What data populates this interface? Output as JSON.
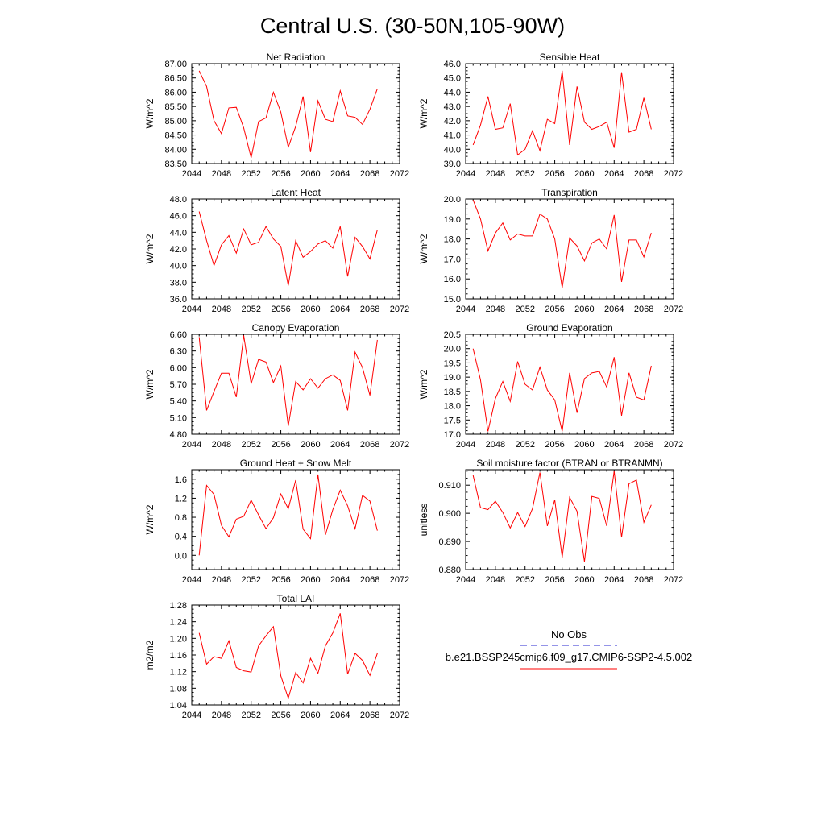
{
  "figure": {
    "title": "Central U.S. (30-50N,105-90W)",
    "legend": {
      "obs_label": "No Obs",
      "obs_color": "#2a2ad0",
      "case_label": "b.e21.BSSP245cmip6.f09_g17.CMIP6-SSP2-4.5.002",
      "case_color": "#ff0000"
    }
  },
  "chart_data": [
    {
      "type": "line",
      "title": "Net Radiation",
      "ylabel": "W/m^2",
      "xlim": [
        2044,
        2072
      ],
      "xticks": [
        2044,
        2048,
        2052,
        2056,
        2060,
        2064,
        2068,
        2072
      ],
      "ylim": [
        83.5,
        87.0
      ],
      "yticks": [
        "83.50",
        "84.00",
        "84.50",
        "85.00",
        "85.50",
        "86.00",
        "86.50",
        "87.00"
      ],
      "series": [
        {
          "color": "#ff0000",
          "x": [
            2045,
            2046,
            2047,
            2048,
            2049,
            2050,
            2051,
            2052,
            2053,
            2054,
            2055,
            2056,
            2057,
            2058,
            2059,
            2060,
            2061,
            2062,
            2063,
            2064,
            2065,
            2066,
            2067,
            2068,
            2069
          ],
          "values": [
            86.75,
            86.2,
            85.0,
            84.55,
            85.45,
            85.47,
            84.75,
            83.7,
            84.97,
            85.1,
            86.0,
            85.3,
            84.07,
            84.8,
            85.85,
            83.9,
            85.7,
            85.05,
            84.97,
            86.05,
            85.17,
            85.12,
            84.87,
            85.4,
            86.12
          ]
        }
      ]
    },
    {
      "type": "line",
      "title": "Sensible Heat",
      "ylabel": "W/m^2",
      "xlim": [
        2044,
        2072
      ],
      "xticks": [
        2044,
        2048,
        2052,
        2056,
        2060,
        2064,
        2068,
        2072
      ],
      "ylim": [
        39.0,
        46.0
      ],
      "yticks": [
        "39.0",
        "40.0",
        "41.0",
        "42.0",
        "43.0",
        "44.0",
        "45.0",
        "46.0"
      ],
      "series": [
        {
          "color": "#ff0000",
          "x": [
            2045,
            2046,
            2047,
            2048,
            2049,
            2050,
            2051,
            2052,
            2053,
            2054,
            2055,
            2056,
            2057,
            2058,
            2059,
            2060,
            2061,
            2062,
            2063,
            2064,
            2065,
            2066,
            2067,
            2068,
            2069
          ],
          "values": [
            40.3,
            41.7,
            43.7,
            41.4,
            41.5,
            43.2,
            39.6,
            40.0,
            41.3,
            39.9,
            42.1,
            41.8,
            45.5,
            40.3,
            44.4,
            41.9,
            41.4,
            41.6,
            41.9,
            40.1,
            45.4,
            41.2,
            41.4,
            43.6,
            41.4
          ]
        }
      ]
    },
    {
      "type": "line",
      "title": "Latent Heat",
      "ylabel": "W/m^2",
      "xlim": [
        2044,
        2072
      ],
      "xticks": [
        2044,
        2048,
        2052,
        2056,
        2060,
        2064,
        2068,
        2072
      ],
      "ylim": [
        36.0,
        48.0
      ],
      "yticks": [
        "36.0",
        "38.0",
        "40.0",
        "42.0",
        "44.0",
        "46.0",
        "48.0"
      ],
      "series": [
        {
          "color": "#ff0000",
          "x": [
            2045,
            2046,
            2047,
            2048,
            2049,
            2050,
            2051,
            2052,
            2053,
            2054,
            2055,
            2056,
            2057,
            2058,
            2059,
            2060,
            2061,
            2062,
            2063,
            2064,
            2065,
            2066,
            2067,
            2068,
            2069
          ],
          "values": [
            46.5,
            43.0,
            40.0,
            42.5,
            43.6,
            41.5,
            44.4,
            42.5,
            42.8,
            44.7,
            43.2,
            42.3,
            37.6,
            43.0,
            41.0,
            41.7,
            42.6,
            43.0,
            42.1,
            44.7,
            38.7,
            43.4,
            42.3,
            40.8,
            44.3
          ]
        }
      ]
    },
    {
      "type": "line",
      "title": "Transpiration",
      "ylabel": "W/m^2",
      "xlim": [
        2044,
        2072
      ],
      "xticks": [
        2044,
        2048,
        2052,
        2056,
        2060,
        2064,
        2068,
        2072
      ],
      "ylim": [
        15.0,
        20.0
      ],
      "yticks": [
        "15.0",
        "16.0",
        "17.0",
        "18.0",
        "19.0",
        "20.0"
      ],
      "series": [
        {
          "color": "#ff0000",
          "x": [
            2045,
            2046,
            2047,
            2048,
            2049,
            2050,
            2051,
            2052,
            2053,
            2054,
            2055,
            2056,
            2057,
            2058,
            2059,
            2060,
            2061,
            2062,
            2063,
            2064,
            2065,
            2066,
            2067,
            2068,
            2069
          ],
          "values": [
            19.95,
            19.0,
            17.4,
            18.3,
            18.8,
            17.95,
            18.25,
            18.15,
            18.15,
            19.25,
            19.0,
            18.0,
            15.55,
            18.05,
            17.65,
            16.9,
            17.8,
            18.0,
            17.5,
            19.2,
            15.85,
            17.95,
            17.95,
            17.1,
            18.3
          ]
        }
      ]
    },
    {
      "type": "line",
      "title": "Canopy Evaporation",
      "ylabel": "W/m^2",
      "xlim": [
        2044,
        2072
      ],
      "xticks": [
        2044,
        2048,
        2052,
        2056,
        2060,
        2064,
        2068,
        2072
      ],
      "ylim": [
        4.8,
        6.6
      ],
      "yticks": [
        "4.80",
        "5.10",
        "5.40",
        "5.70",
        "6.00",
        "6.30",
        "6.60"
      ],
      "series": [
        {
          "color": "#ff0000",
          "x": [
            2045,
            2046,
            2047,
            2048,
            2049,
            2050,
            2051,
            2052,
            2053,
            2054,
            2055,
            2056,
            2057,
            2058,
            2059,
            2060,
            2061,
            2062,
            2063,
            2064,
            2065,
            2066,
            2067,
            2068,
            2069
          ],
          "values": [
            6.55,
            5.23,
            5.57,
            5.9,
            5.9,
            5.47,
            6.58,
            5.71,
            6.15,
            6.1,
            5.73,
            6.03,
            4.95,
            5.75,
            5.6,
            5.8,
            5.63,
            5.8,
            5.87,
            5.77,
            5.23,
            6.28,
            6.0,
            5.5,
            6.5
          ]
        }
      ]
    },
    {
      "type": "line",
      "title": "Ground Evaporation",
      "ylabel": "W/m^2",
      "xlim": [
        2044,
        2072
      ],
      "xticks": [
        2044,
        2048,
        2052,
        2056,
        2060,
        2064,
        2068,
        2072
      ],
      "ylim": [
        17.0,
        20.5
      ],
      "yticks": [
        "17.0",
        "17.5",
        "18.0",
        "18.5",
        "19.0",
        "19.5",
        "20.0",
        "20.5"
      ],
      "series": [
        {
          "color": "#ff0000",
          "x": [
            2045,
            2046,
            2047,
            2048,
            2049,
            2050,
            2051,
            2052,
            2053,
            2054,
            2055,
            2056,
            2057,
            2058,
            2059,
            2060,
            2061,
            2062,
            2063,
            2064,
            2065,
            2066,
            2067,
            2068,
            2069
          ],
          "values": [
            20.0,
            18.9,
            17.1,
            18.25,
            18.85,
            18.15,
            19.55,
            18.75,
            18.55,
            19.35,
            18.55,
            18.2,
            17.1,
            19.15,
            17.75,
            18.95,
            19.15,
            19.2,
            18.65,
            19.7,
            17.65,
            19.15,
            18.3,
            18.2,
            19.4
          ]
        }
      ]
    },
    {
      "type": "line",
      "title": "Ground Heat + Snow Melt",
      "ylabel": "W/m^2",
      "xlim": [
        2044,
        2072
      ],
      "xticks": [
        2044,
        2048,
        2052,
        2056,
        2060,
        2064,
        2068,
        2072
      ],
      "ylim": [
        -0.3,
        1.8
      ],
      "yticks": [
        "0.0",
        "0.4",
        "0.8",
        "1.2",
        "1.6"
      ],
      "ytick_values": [
        0.0,
        0.4,
        0.8,
        1.2,
        1.6
      ],
      "series": [
        {
          "color": "#ff0000",
          "x": [
            2045,
            2046,
            2047,
            2048,
            2049,
            2050,
            2051,
            2052,
            2053,
            2054,
            2055,
            2056,
            2057,
            2058,
            2059,
            2060,
            2061,
            2062,
            2063,
            2064,
            2065,
            2066,
            2067,
            2068,
            2069
          ],
          "values": [
            0.0,
            1.47,
            1.28,
            0.63,
            0.39,
            0.76,
            0.82,
            1.16,
            0.85,
            0.56,
            0.79,
            1.29,
            0.98,
            1.58,
            0.55,
            0.35,
            1.7,
            0.43,
            0.96,
            1.37,
            1.04,
            0.56,
            1.26,
            1.14,
            0.52
          ]
        }
      ]
    },
    {
      "type": "line",
      "title": "Soil moisture factor (BTRAN or BTRANMN)",
      "ylabel": "unitless",
      "xlim": [
        2044,
        2072
      ],
      "xticks": [
        2044,
        2048,
        2052,
        2056,
        2060,
        2064,
        2068,
        2072
      ],
      "ylim": [
        0.88,
        0.9155
      ],
      "yticks": [
        "0.880",
        "0.890",
        "0.900",
        "0.910"
      ],
      "ytick_values": [
        0.88,
        0.89,
        0.9,
        0.91
      ],
      "series": [
        {
          "color": "#ff0000",
          "x": [
            2045,
            2046,
            2047,
            2048,
            2049,
            2050,
            2051,
            2052,
            2053,
            2054,
            2055,
            2056,
            2057,
            2058,
            2059,
            2060,
            2061,
            2062,
            2063,
            2064,
            2065,
            2066,
            2067,
            2068,
            2069
          ],
          "values": [
            0.9135,
            0.902,
            0.9013,
            0.9043,
            0.9003,
            0.8948,
            0.9003,
            0.8953,
            0.9017,
            0.9145,
            0.8955,
            0.9048,
            0.8843,
            0.9057,
            0.9007,
            0.8828,
            0.906,
            0.9053,
            0.8955,
            0.915,
            0.8915,
            0.9105,
            0.9118,
            0.8968,
            0.903
          ]
        }
      ]
    },
    {
      "type": "line",
      "title": "Total LAI",
      "ylabel": "m2/m2",
      "xlim": [
        2044,
        2072
      ],
      "xticks": [
        2044,
        2048,
        2052,
        2056,
        2060,
        2064,
        2068,
        2072
      ],
      "ylim": [
        1.04,
        1.28
      ],
      "yticks": [
        "1.04",
        "1.08",
        "1.12",
        "1.16",
        "1.20",
        "1.24",
        "1.28"
      ],
      "series": [
        {
          "color": "#ff0000",
          "x": [
            2045,
            2046,
            2047,
            2048,
            2049,
            2050,
            2051,
            2052,
            2053,
            2054,
            2055,
            2056,
            2057,
            2058,
            2059,
            2060,
            2061,
            2062,
            2063,
            2064,
            2065,
            2066,
            2067,
            2068,
            2069
          ],
          "values": [
            1.213,
            1.138,
            1.156,
            1.152,
            1.194,
            1.13,
            1.122,
            1.119,
            1.182,
            1.206,
            1.228,
            1.11,
            1.056,
            1.118,
            1.093,
            1.152,
            1.116,
            1.182,
            1.213,
            1.26,
            1.114,
            1.164,
            1.147,
            1.111,
            1.164
          ]
        }
      ]
    }
  ]
}
